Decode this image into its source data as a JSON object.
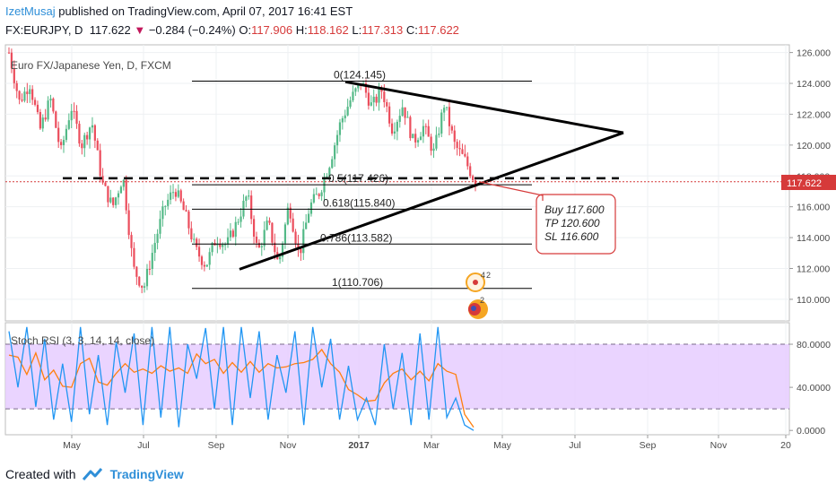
{
  "header": {
    "author": "IzetMusaj",
    "published": "published on TradingView.com, April 07, 2017 16:41 EST",
    "symbol": "FX:EURJPY, D",
    "last": "117.622",
    "arrow": "▼",
    "change": "−0.284 (−0.24%)",
    "o_label": "O:",
    "o": "117.906",
    "h_label": "H:",
    "h": "118.162",
    "l_label": "L:",
    "l": "117.313",
    "c_label": "C:",
    "c": "117.622"
  },
  "footer": {
    "created_with": "Created with",
    "brand": "TradingView"
  },
  "chart_data": [
    {
      "type": "candlestick",
      "title": "Euro FX/Japanese Yen, D, FXCM",
      "ylim": [
        108.6,
        126.5
      ],
      "y_ticks": [
        110,
        112,
        114,
        116,
        118,
        120,
        122,
        124,
        126
      ],
      "x_ticks": [
        "May",
        "Jul",
        "Sep",
        "Nov",
        "2017",
        "Mar",
        "May",
        "Jul",
        "Sep",
        "Nov",
        "20"
      ],
      "price_tag": "117.622",
      "fib_levels": [
        {
          "label": "0(124.145)",
          "value": 124.145
        },
        {
          "label": "0.5(117.426)",
          "value": 117.426
        },
        {
          "label": "0.618(115.840)",
          "value": 115.84
        },
        {
          "label": "0.786(113.582)",
          "value": 113.582
        },
        {
          "label": "1(110.706)",
          "value": 110.706
        }
      ],
      "annotation": [
        "Buy 117.600",
        "TP 120.600",
        "SL 116.600"
      ],
      "colors": {
        "up": "#53b987",
        "down": "#eb4d5c",
        "line": "#000000",
        "price": "#d63a3a"
      },
      "close_path": [
        126,
        122.8,
        124,
        121,
        123,
        119.5,
        122.5,
        120,
        121.5,
        117.5,
        116,
        118,
        112,
        110.7,
        113.5,
        116,
        117.2,
        115.5,
        113.2,
        112.2,
        114,
        113.5,
        115,
        116.8,
        113,
        115,
        112.2,
        116.2,
        112.8,
        116,
        117,
        119,
        121.5,
        123,
        124.1,
        122.5,
        123.6,
        121,
        122.6,
        120.2,
        121.2,
        119.5,
        122.7,
        120,
        119,
        117.6
      ]
    },
    {
      "type": "line",
      "title": "Stoch RSI (3, 3, 14, 14, close)",
      "ylim": [
        -4,
        100
      ],
      "y_ticks": [
        "0.0000",
        "40.0000",
        "80.0000"
      ],
      "band": [
        20,
        80
      ],
      "series": [
        {
          "color": "#2196f3"
        },
        {
          "color": "#ff7f0e"
        }
      ],
      "k_values": [
        92,
        40,
        96,
        22,
        85,
        10,
        62,
        8,
        96,
        15,
        70,
        5,
        82,
        35,
        90,
        5,
        96,
        12,
        96,
        3,
        80,
        48,
        95,
        20,
        96,
        5,
        96,
        30,
        92,
        10,
        70,
        35,
        92,
        5,
        96,
        40,
        85,
        10,
        60,
        10,
        30,
        5,
        80,
        20,
        72,
        5,
        90,
        10,
        96,
        12,
        30,
        5,
        0
      ],
      "d_values": [
        70,
        68,
        52,
        72,
        47,
        56,
        41,
        40,
        62,
        67,
        45,
        42,
        53,
        62,
        54,
        57,
        53,
        60,
        55,
        58,
        53,
        71,
        62,
        66,
        53,
        63,
        54,
        64,
        54,
        62,
        58,
        59,
        62,
        63,
        66,
        75,
        62,
        54,
        38,
        33,
        27,
        28,
        44,
        53,
        57,
        47,
        55,
        46,
        62,
        55,
        52,
        15,
        3
      ]
    }
  ]
}
